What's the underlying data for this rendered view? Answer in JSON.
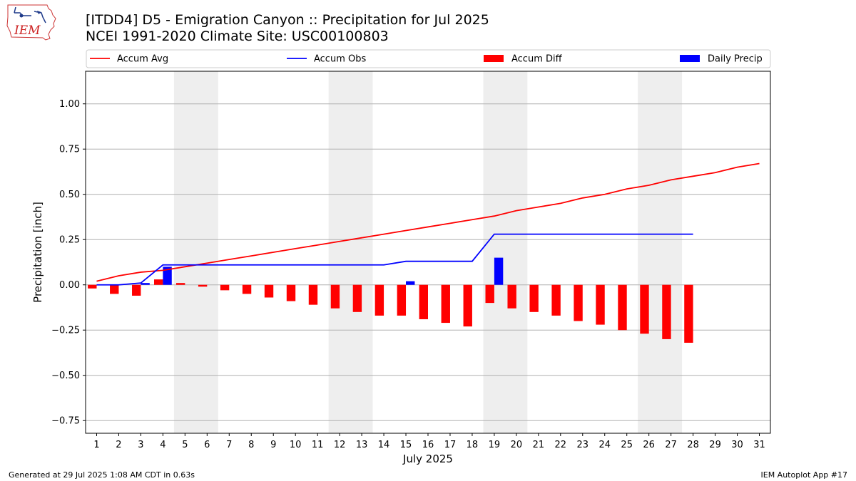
{
  "title": "[ITDD4] D5 - Emigration Canyon  :: Precipitation for Jul 2025",
  "subtitle": "NCEI 1991-2020 Climate Site: USC00100803",
  "footer_left": "Generated at 29 Jul 2025 1:08 AM CDT in 0.63s",
  "footer_right": "IEM Autoplot App #17",
  "logo_text": "IEM",
  "colors": {
    "accum_avg": "#ff0000",
    "accum_obs": "#0000ff",
    "accum_diff": "#ff0000",
    "daily_precip": "#0000ff",
    "weekend_shade": "#eeeeee",
    "grid": "#b0b0b0"
  },
  "chart_data": {
    "type": "bar",
    "xlabel": "July 2025",
    "ylabel": "Precipitation [inch]",
    "ylim": [
      -0.82,
      1.18
    ],
    "xlim": [
      0.5,
      31.5
    ],
    "yticks": [
      -0.75,
      -0.5,
      -0.25,
      0.0,
      0.25,
      0.5,
      0.75,
      1.0
    ],
    "ytick_labels": [
      "−0.75",
      "−0.50",
      "−0.25",
      "0.00",
      "0.25",
      "0.50",
      "0.75",
      "1.00"
    ],
    "grid": "horizontal",
    "legend_position": "top",
    "days": [
      1,
      2,
      3,
      4,
      5,
      6,
      7,
      8,
      9,
      10,
      11,
      12,
      13,
      14,
      15,
      16,
      17,
      18,
      19,
      20,
      21,
      22,
      23,
      24,
      25,
      26,
      27,
      28,
      29,
      30,
      31
    ],
    "weekend_spans": [
      [
        4.5,
        6.5
      ],
      [
        11.5,
        13.5
      ],
      [
        18.5,
        20.5
      ],
      [
        25.5,
        27.5
      ]
    ],
    "legend": [
      "Accum Avg",
      "Accum Obs",
      "Accum Diff",
      "Daily Precip"
    ],
    "series": [
      {
        "name": "Accum Avg",
        "type": "line",
        "values": [
          0.02,
          0.05,
          0.07,
          0.08,
          0.1,
          0.12,
          0.14,
          0.16,
          0.18,
          0.2,
          0.22,
          0.24,
          0.26,
          0.28,
          0.3,
          0.32,
          0.34,
          0.36,
          0.38,
          0.41,
          0.43,
          0.45,
          0.48,
          0.5,
          0.53,
          0.55,
          0.58,
          0.6,
          0.62,
          0.65,
          0.67
        ]
      },
      {
        "name": "Accum Obs",
        "type": "line",
        "values": [
          0.0,
          0.0,
          0.01,
          0.11,
          0.11,
          0.11,
          0.11,
          0.11,
          0.11,
          0.11,
          0.11,
          0.11,
          0.11,
          0.11,
          0.13,
          0.13,
          0.13,
          0.13,
          0.28,
          0.28,
          0.28,
          0.28,
          0.28,
          0.28,
          0.28,
          0.28,
          0.28,
          0.28
        ]
      },
      {
        "name": "Accum Diff",
        "type": "bar",
        "values": [
          -0.02,
          -0.05,
          -0.06,
          0.03,
          0.01,
          -0.01,
          -0.03,
          -0.05,
          -0.07,
          -0.09,
          -0.11,
          -0.13,
          -0.15,
          -0.17,
          -0.17,
          -0.19,
          -0.21,
          -0.23,
          -0.1,
          -0.13,
          -0.15,
          -0.17,
          -0.2,
          -0.22,
          -0.25,
          -0.27,
          -0.3,
          -0.32
        ]
      },
      {
        "name": "Daily Precip",
        "type": "bar",
        "values": [
          0.0,
          0.0,
          0.01,
          0.1,
          0.0,
          0.0,
          0.0,
          0.0,
          0.0,
          0.0,
          0.0,
          0.0,
          0.0,
          0.0,
          0.02,
          0.0,
          0.0,
          0.0,
          0.15,
          0.0,
          0.0,
          0.0,
          0.0,
          0.0,
          0.0,
          0.0,
          0.0,
          0.0
        ]
      }
    ]
  }
}
